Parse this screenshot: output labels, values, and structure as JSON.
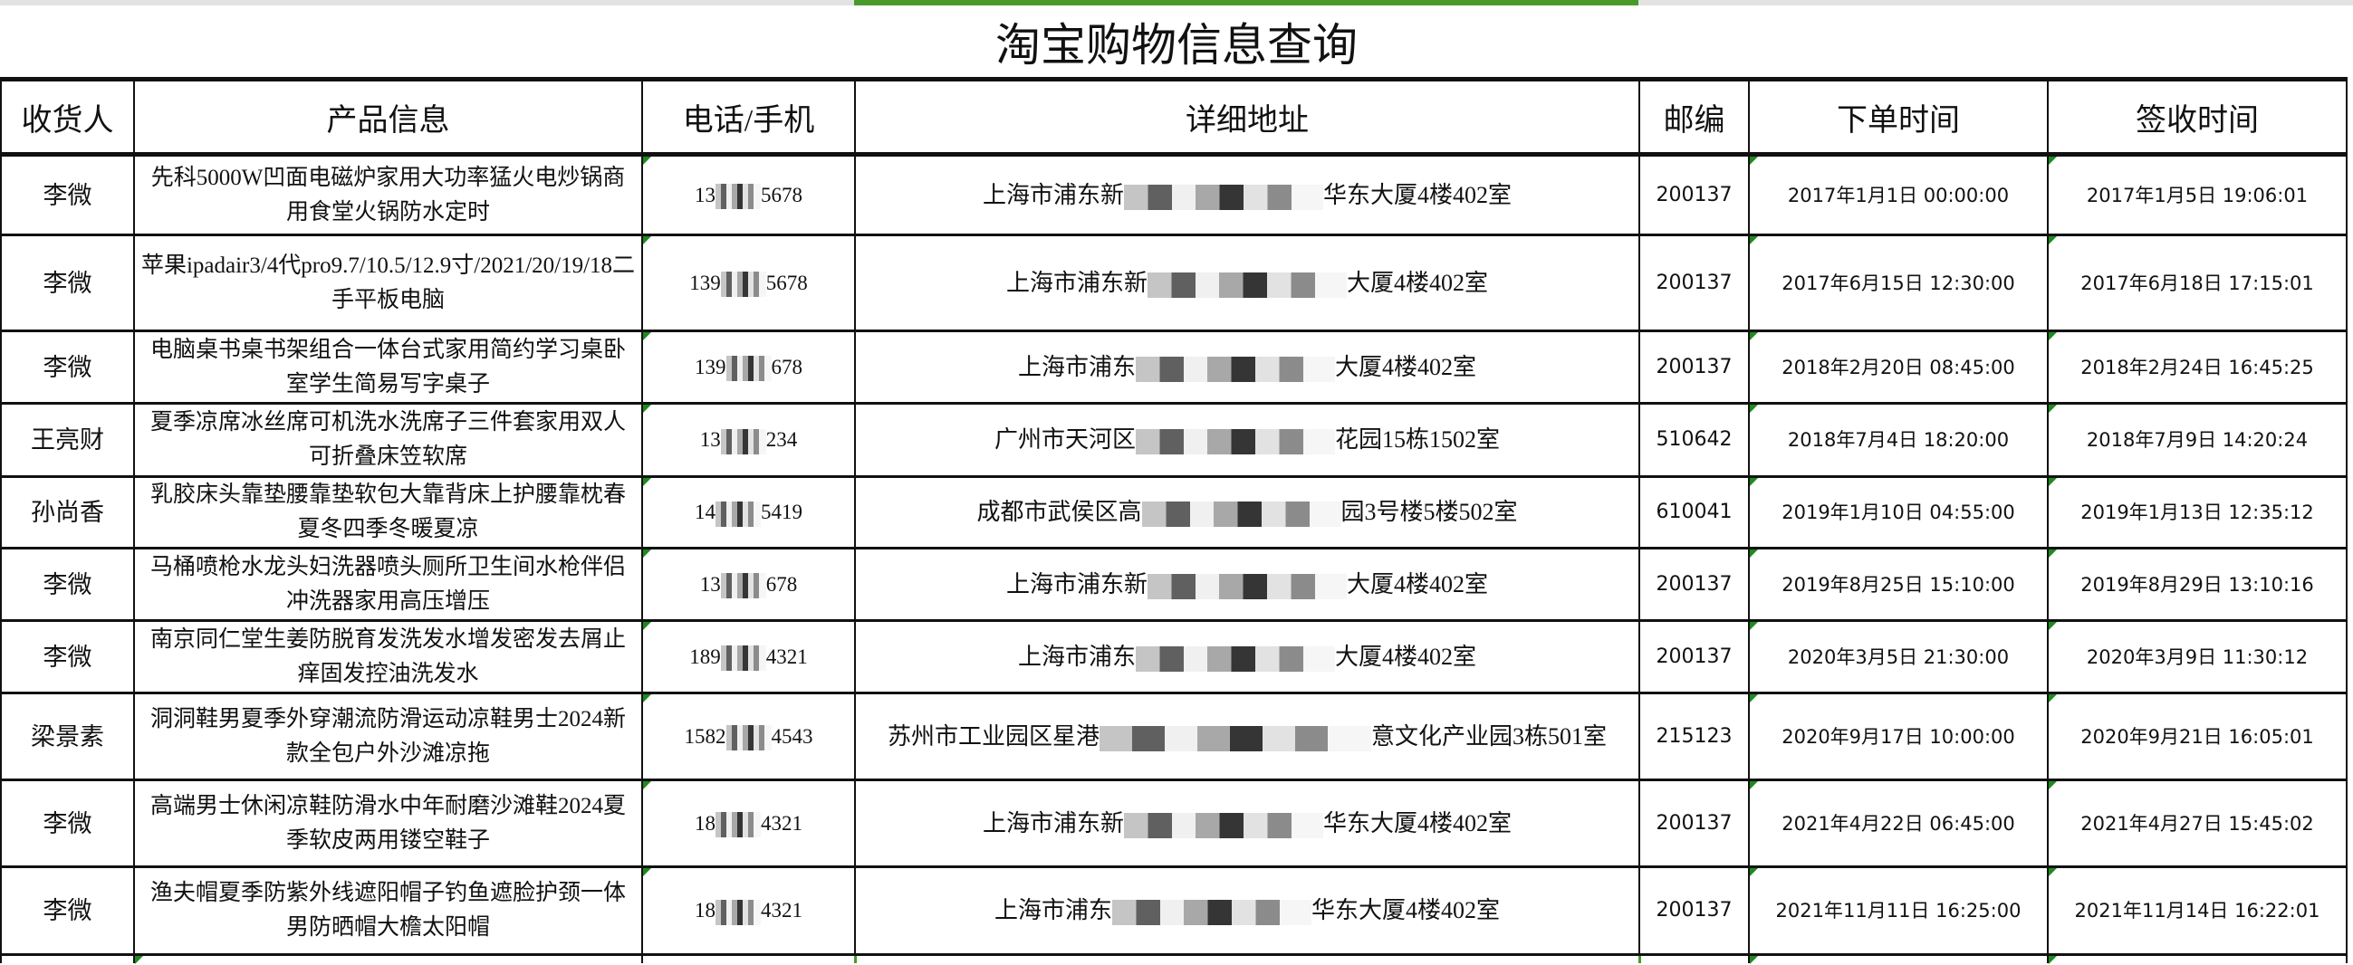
{
  "title": "淘宝购物信息查询",
  "colors": {
    "selection_green": "#4a9a2a",
    "cell_marker_green": "#1f8a1f"
  },
  "headers": [
    "收货人",
    "产品信息",
    "电话/手机",
    "详细地址",
    "邮编",
    "下单时间",
    "签收时间"
  ],
  "rows": [
    {
      "name": "李微",
      "product": "先科5000W凹面电磁炉家用大功率猛火电炒锅商用食堂火锅防水定时",
      "phone_prefix": "13",
      "phone_suffix": "5678",
      "addr_prefix": "上海市浦东新",
      "addr_suffix": "华东大厦4楼402室",
      "zip": "200137",
      "order_time": "2017年1月1日 00:00:00",
      "sign_time": "2017年1月5日 19:06:01"
    },
    {
      "name": "李微",
      "product": "苹果ipadair3/4代pro9.7/10.5/12.9寸/2021/20/19/18二手平板电脑",
      "phone_prefix": "139",
      "phone_suffix": "5678",
      "addr_prefix": "上海市浦东新",
      "addr_suffix": "大厦4楼402室",
      "zip": "200137",
      "order_time": "2017年6月15日 12:30:00",
      "sign_time": "2017年6月18日 17:15:01"
    },
    {
      "name": "李微",
      "product": "电脑桌书桌书架组合一体台式家用简约学习桌卧室学生简易写字桌子",
      "phone_prefix": "139",
      "phone_suffix": "678",
      "addr_prefix": "上海市浦东",
      "addr_suffix": "大厦4楼402室",
      "zip": "200137",
      "order_time": "2018年2月20日 08:45:00",
      "sign_time": "2018年2月24日 16:45:25"
    },
    {
      "name": "王亮财",
      "product": "夏季凉席冰丝席可机洗水洗席子三件套家用双人可折叠床笠软席",
      "phone_prefix": "13",
      "phone_suffix": "234",
      "addr_prefix": "广州市天河区",
      "addr_suffix": "花园15栋1502室",
      "zip": "510642",
      "order_time": "2018年7月4日 18:20:00",
      "sign_time": "2018年7月9日 14:20:24"
    },
    {
      "name": "孙尚香",
      "product": "乳胶床头靠垫腰靠垫软包大靠背床上护腰靠枕春夏冬四季冬暖夏凉",
      "phone_prefix": "14",
      "phone_suffix": "5419",
      "addr_prefix": "成都市武侯区高",
      "addr_suffix": "园3号楼5楼502室",
      "zip": "610041",
      "order_time": "2019年1月10日 04:55:00",
      "sign_time": "2019年1月13日 12:35:12"
    },
    {
      "name": "李微",
      "product": "马桶喷枪水龙头妇洗器喷头厕所卫生间水枪伴侣冲洗器家用高压增压",
      "phone_prefix": "13",
      "phone_suffix": "678",
      "addr_prefix": "上海市浦东新",
      "addr_suffix": "大厦4楼402室",
      "zip": "200137",
      "order_time": "2019年8月25日 15:10:00",
      "sign_time": "2019年8月29日 13:10:16"
    },
    {
      "name": "李微",
      "product": "南京同仁堂生姜防脱育发洗发水增发密发去屑止痒固发控油洗发水",
      "phone_prefix": "189",
      "phone_suffix": "4321",
      "addr_prefix": "上海市浦东",
      "addr_suffix": "大厦4楼402室",
      "zip": "200137",
      "order_time": "2020年3月5日 21:30:00",
      "sign_time": "2020年3月9日 11:30:12"
    },
    {
      "name": "梁景素",
      "product": "洞洞鞋男夏季外穿潮流防滑运动凉鞋男士2024新款全包户外沙滩凉拖",
      "phone_prefix": "1582",
      "phone_suffix": "4543",
      "addr_prefix": "苏州市工业园区星港",
      "addr_suffix": "意文化产业园3栋501室",
      "zip": "215123",
      "order_time": "2020年9月17日 10:00:00",
      "sign_time": "2020年9月21日 16:05:01"
    },
    {
      "name": "李微",
      "product": "高端男士休闲凉鞋防滑水中年耐磨沙滩鞋2024夏季软皮两用镂空鞋子",
      "phone_prefix": "18",
      "phone_suffix": "4321",
      "addr_prefix": "上海市浦东新",
      "addr_suffix": "华东大厦4楼402室",
      "zip": "200137",
      "order_time": "2021年4月22日 06:45:00",
      "sign_time": "2021年4月27日 15:45:02"
    },
    {
      "name": "李微",
      "product": "渔夫帽夏季防紫外线遮阳帽子钓鱼遮脸护颈一体男防晒帽大檐太阳帽",
      "phone_prefix": "18",
      "phone_suffix": "4321",
      "addr_prefix": "上海市浦东",
      "addr_suffix": "华东大厦4楼402室",
      "zip": "200137",
      "order_time": "2021年11月11日 16:25:00",
      "sign_time": "2021年11月14日 16:22:01"
    }
  ]
}
